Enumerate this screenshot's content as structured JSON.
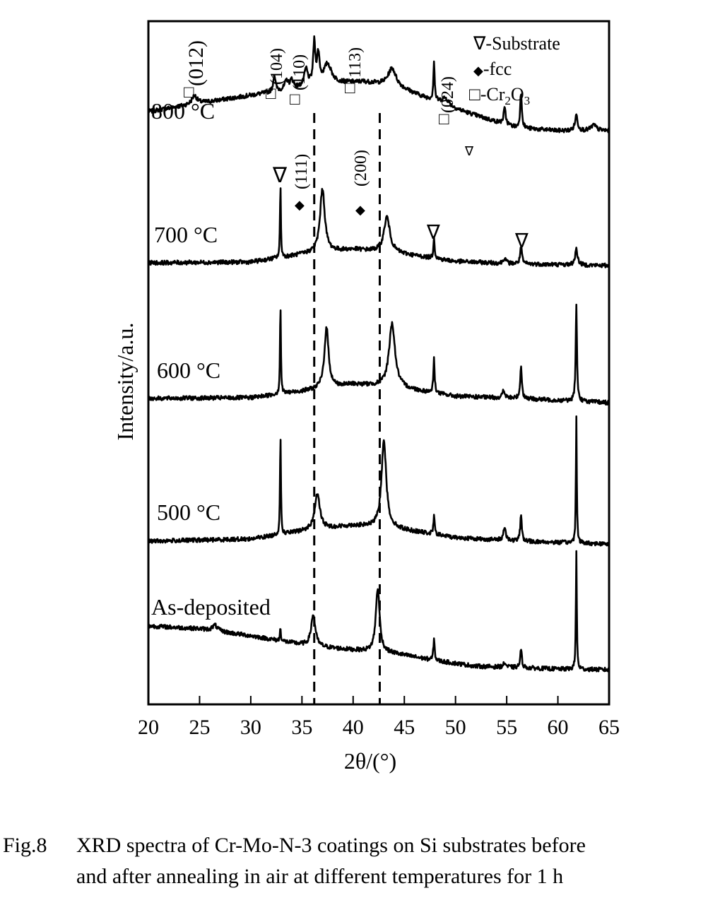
{
  "chart_data": {
    "type": "line",
    "xlabel": "2θ/(°)",
    "ylabel": "Intensity/a.u.",
    "xlim": [
      20,
      65
    ],
    "x_ticks": [
      "20",
      "25",
      "30",
      "35",
      "40",
      "45",
      "50",
      "55",
      "60",
      "65"
    ],
    "y_ticks": "none",
    "grid": false,
    "dashed_reference_lines_x": [
      36.2,
      42.6
    ],
    "series": [
      {
        "name": "800 °C",
        "background": [
          [
            20,
            30
          ],
          [
            25,
            42
          ],
          [
            30,
            53
          ],
          [
            35,
            64
          ],
          [
            38,
            70
          ],
          [
            41,
            72
          ],
          [
            44,
            67
          ],
          [
            47,
            50
          ],
          [
            50,
            34
          ],
          [
            53,
            20
          ],
          [
            56,
            7
          ],
          [
            60,
            3
          ],
          [
            65,
            3
          ]
        ],
        "peaks": [
          [
            24.5,
            12,
            0.6
          ],
          [
            32.3,
            24,
            0.25
          ],
          [
            33.5,
            12,
            0.4
          ],
          [
            34.0,
            12,
            0.4
          ],
          [
            35.4,
            24,
            0.4
          ],
          [
            36.2,
            58,
            0.25
          ],
          [
            36.6,
            40,
            0.3
          ],
          [
            37.5,
            28,
            0.9
          ],
          [
            43.8,
            24,
            0.9
          ],
          [
            47.9,
            55,
            0.15
          ],
          [
            49.0,
            10,
            0.8
          ],
          [
            54.8,
            22,
            0.25
          ],
          [
            56.4,
            50,
            0.2
          ],
          [
            61.8,
            22,
            0.3
          ],
          [
            63.5,
            8,
            0.6
          ]
        ]
      },
      {
        "name": "700 °C",
        "background": [
          [
            20,
            6
          ],
          [
            30,
            7
          ],
          [
            36,
            20
          ],
          [
            40,
            25
          ],
          [
            44,
            20
          ],
          [
            50,
            8
          ],
          [
            55,
            5
          ],
          [
            65,
            2
          ]
        ],
        "peaks": [
          [
            32.9,
            105,
            0.1
          ],
          [
            37.0,
            90,
            0.55
          ],
          [
            43.3,
            50,
            0.7
          ],
          [
            47.9,
            30,
            0.15
          ],
          [
            54.8,
            8,
            0.3
          ],
          [
            56.4,
            25,
            0.2
          ],
          [
            61.8,
            22,
            0.3
          ]
        ]
      },
      {
        "name": "600 °C",
        "background": [
          [
            20,
            8
          ],
          [
            30,
            9
          ],
          [
            36,
            20
          ],
          [
            40,
            28
          ],
          [
            44,
            24
          ],
          [
            50,
            11
          ],
          [
            56,
            8
          ],
          [
            65,
            2
          ]
        ],
        "peaks": [
          [
            32.9,
            130,
            0.1
          ],
          [
            37.4,
            85,
            0.5
          ],
          [
            43.8,
            90,
            0.7
          ],
          [
            47.9,
            48,
            0.15
          ],
          [
            54.7,
            10,
            0.3
          ],
          [
            56.4,
            45,
            0.2
          ],
          [
            61.8,
            135,
            0.15
          ]
        ]
      },
      {
        "name": "500 °C",
        "background": [
          [
            20,
            6
          ],
          [
            30,
            9
          ],
          [
            36,
            22
          ],
          [
            40,
            28
          ],
          [
            44,
            24
          ],
          [
            50,
            11
          ],
          [
            56,
            6
          ],
          [
            65,
            2
          ]
        ],
        "peaks": [
          [
            32.9,
            145,
            0.1
          ],
          [
            36.5,
            50,
            0.6
          ],
          [
            43.0,
            125,
            0.55
          ],
          [
            47.9,
            25,
            0.15
          ],
          [
            54.8,
            18,
            0.3
          ],
          [
            56.4,
            35,
            0.2
          ],
          [
            61.8,
            180,
            0.1
          ]
        ]
      },
      {
        "name": "As-deposited",
        "background": [
          [
            20,
            64
          ],
          [
            25,
            60
          ],
          [
            30,
            50
          ],
          [
            34,
            40
          ],
          [
            36,
            35
          ],
          [
            40,
            30
          ],
          [
            44,
            25
          ],
          [
            48,
            15
          ],
          [
            52,
            7
          ],
          [
            56,
            5
          ],
          [
            60,
            3
          ],
          [
            65,
            2
          ]
        ],
        "peaks": [
          [
            26.5,
            8,
            0.6
          ],
          [
            32.9,
            20,
            0.1
          ],
          [
            36.1,
            45,
            0.5
          ],
          [
            42.4,
            90,
            0.45
          ],
          [
            47.9,
            30,
            0.15
          ],
          [
            54.8,
            6,
            0.3
          ],
          [
            56.4,
            25,
            0.2
          ],
          [
            61.8,
            170,
            0.1
          ]
        ]
      }
    ],
    "peak_annotations": {
      "cr2o3": [
        "(012)",
        "(104)",
        "(110)",
        "(113)",
        "(024)"
      ],
      "fcc": [
        "(111)",
        "(200)"
      ]
    },
    "legend": {
      "position": "top-right",
      "items": [
        {
          "symbol": "∇",
          "label": "-Substrate"
        },
        {
          "symbol": "◆",
          "label": "-fcc"
        },
        {
          "symbol": "□",
          "label": "-Cr",
          "sub1": "2",
          "mid": "O",
          "sub2": "3"
        }
      ]
    }
  },
  "caption": {
    "number": "Fig.8",
    "line1": "XRD spectra of Cr-Mo-N-3 coatings on Si substrates before",
    "line2": "and after annealing in air at different temperatures for 1 h"
  }
}
